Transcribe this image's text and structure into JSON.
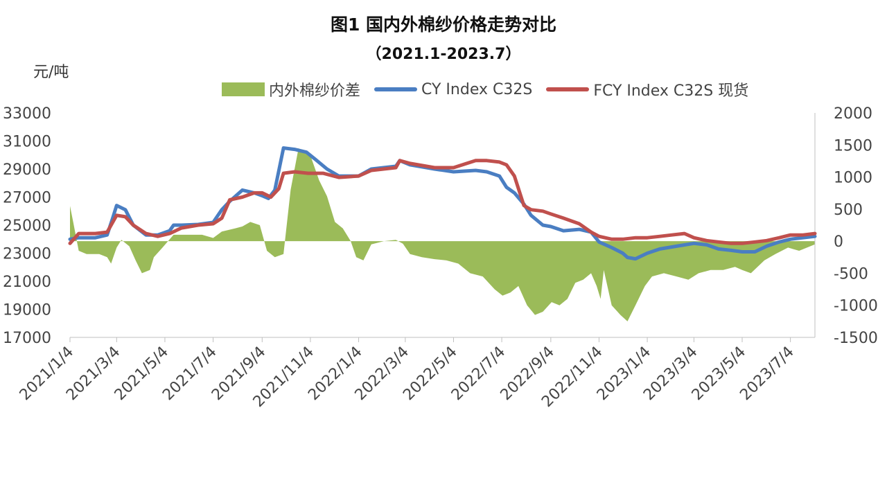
{
  "chart_data": {
    "type": "line",
    "title": "图1   国内外棉纱价格走势对比",
    "subtitle": "（2021.1-2023.7）",
    "ylabel": "元/吨",
    "ylim": [
      17000,
      33000
    ],
    "y2lim": [
      -1500,
      2000
    ],
    "y_ticks": [
      "33000",
      "31000",
      "29000",
      "27000",
      "25000",
      "23000",
      "21000",
      "19000",
      "17000"
    ],
    "y2_ticks": [
      "2000",
      "1500",
      "1000",
      "500",
      "0",
      "-500",
      "-1000",
      "-1500"
    ],
    "x_tick_labels": [
      "2021/1/4",
      "2021/3/4",
      "2021/5/4",
      "2021/7/4",
      "2021/9/4",
      "2021/11/4",
      "2022/1/4",
      "2022/3/4",
      "2022/5/4",
      "2022/7/4",
      "2022/9/4",
      "2022/11/4",
      "2023/1/4",
      "2023/3/4",
      "2023/5/4",
      "2023/7/4"
    ],
    "x_start": "2021/1/4",
    "x_end": "2023/8/4",
    "series": [
      {
        "name": "CY Index C32S",
        "axis": "left",
        "color": "#4A7EC2",
        "x": [
          "2021/1/4",
          "2021/1/15",
          "2021/2/5",
          "2021/2/20",
          "2021/2/27",
          "2021/3/4",
          "2021/3/15",
          "2021/3/25",
          "2021/4/10",
          "2021/4/25",
          "2021/5/10",
          "2021/5/15",
          "2021/5/25",
          "2021/6/15",
          "2021/7/4",
          "2021/7/15",
          "2021/7/25",
          "2021/8/10",
          "2021/8/25",
          "2021/9/4",
          "2021/9/12",
          "2021/9/20",
          "2021/10/1",
          "2021/10/15",
          "2021/10/30",
          "2021/11/10",
          "2021/11/25",
          "2021/12/10",
          "2022/1/4",
          "2022/1/20",
          "2022/2/20",
          "2022/2/25",
          "2022/3/10",
          "2022/4/10",
          "2022/5/4",
          "2022/6/1",
          "2022/6/15",
          "2022/7/1",
          "2022/7/10",
          "2022/7/20",
          "2022/8/1",
          "2022/8/10",
          "2022/8/25",
          "2022/9/4",
          "2022/9/20",
          "2022/10/10",
          "2022/10/25",
          "2022/11/4",
          "2022/11/20",
          "2022/12/4",
          "2022/12/10",
          "2022/12/20",
          "2023/1/4",
          "2023/1/20",
          "2023/2/10",
          "2023/3/4",
          "2023/3/20",
          "2023/4/4",
          "2023/4/20",
          "2023/5/4",
          "2023/5/20",
          "2023/6/4",
          "2023/6/20",
          "2023/7/4",
          "2023/7/20",
          "2023/8/4"
        ],
        "values": [
          24000,
          24100,
          24100,
          24300,
          25500,
          26400,
          26100,
          25000,
          24300,
          24300,
          24600,
          25000,
          25000,
          25050,
          25200,
          26100,
          26700,
          27500,
          27300,
          27100,
          26900,
          27500,
          30500,
          30400,
          30200,
          29700,
          29000,
          28500,
          28500,
          29000,
          29200,
          29600,
          29300,
          29000,
          28800,
          28900,
          28800,
          28500,
          27700,
          27300,
          26500,
          25700,
          25000,
          24900,
          24600,
          24700,
          24500,
          23800,
          23400,
          23000,
          22700,
          22600,
          23000,
          23300,
          23500,
          23700,
          23600,
          23300,
          23200,
          23100,
          23100,
          23500,
          23800,
          24000,
          24100,
          24200
        ]
      },
      {
        "name": "FCY Index C32S 现货",
        "axis": "left",
        "color": "#C0504D",
        "x": [
          "2021/1/4",
          "2021/1/15",
          "2021/2/5",
          "2021/2/20",
          "2021/3/4",
          "2021/3/15",
          "2021/3/25",
          "2021/4/10",
          "2021/4/25",
          "2021/5/10",
          "2021/5/25",
          "2021/6/15",
          "2021/7/4",
          "2021/7/15",
          "2021/7/25",
          "2021/8/10",
          "2021/8/25",
          "2021/9/4",
          "2021/9/15",
          "2021/9/25",
          "2021/10/1",
          "2021/10/15",
          "2021/11/1",
          "2021/11/20",
          "2021/12/10",
          "2022/1/4",
          "2022/1/20",
          "2022/2/20",
          "2022/2/25",
          "2022/3/10",
          "2022/4/10",
          "2022/5/4",
          "2022/6/1",
          "2022/6/15",
          "2022/7/1",
          "2022/7/10",
          "2022/7/20",
          "2022/8/1",
          "2022/8/10",
          "2022/8/25",
          "2022/9/4",
          "2022/9/20",
          "2022/10/10",
          "2022/10/25",
          "2022/11/4",
          "2022/11/20",
          "2022/12/4",
          "2022/12/20",
          "2023/1/4",
          "2023/1/20",
          "2023/2/4",
          "2023/2/20",
          "2023/3/4",
          "2023/3/20",
          "2023/4/4",
          "2023/4/20",
          "2023/5/4",
          "2023/5/20",
          "2023/6/4",
          "2023/6/20",
          "2023/7/4",
          "2023/7/20",
          "2023/8/4"
        ],
        "values": [
          23700,
          24400,
          24400,
          24500,
          25700,
          25600,
          25000,
          24400,
          24200,
          24400,
          24800,
          25000,
          25100,
          25500,
          26800,
          27000,
          27300,
          27300,
          27000,
          27600,
          28700,
          28800,
          28700,
          28700,
          28400,
          28500,
          28900,
          29100,
          29600,
          29400,
          29100,
          29100,
          29600,
          29600,
          29500,
          29300,
          28500,
          26400,
          26100,
          26000,
          25800,
          25500,
          25100,
          24500,
          24200,
          24000,
          24000,
          24100,
          24100,
          24200,
          24300,
          24400,
          24100,
          23900,
          23800,
          23700,
          23700,
          23800,
          23900,
          24100,
          24300,
          24300,
          24400
        ]
      },
      {
        "name": "内外棉纱价差",
        "axis": "right",
        "type": "area",
        "color": "#9BBB59",
        "x": [
          "2021/1/4",
          "2021/1/8",
          "2021/1/15",
          "2021/1/25",
          "2021/2/10",
          "2021/2/20",
          "2021/2/25",
          "2021/3/4",
          "2021/3/10",
          "2021/3/20",
          "2021/3/28",
          "2021/4/5",
          "2021/4/15",
          "2021/4/20",
          "2021/5/1",
          "2021/5/15",
          "2021/6/1",
          "2021/6/20",
          "2021/7/4",
          "2021/7/15",
          "2021/8/1",
          "2021/8/10",
          "2021/8/20",
          "2021/9/1",
          "2021/9/10",
          "2021/9/20",
          "2021/10/1",
          "2021/10/10",
          "2021/10/20",
          "2021/11/5",
          "2021/11/15",
          "2021/11/25",
          "2021/12/5",
          "2021/12/15",
          "2021/12/25",
          "2022/1/1",
          "2022/1/10",
          "2022/1/20",
          "2022/2/5",
          "2022/2/20",
          "2022/3/1",
          "2022/3/10",
          "2022/3/25",
          "2022/4/10",
          "2022/4/25",
          "2022/5/10",
          "2022/5/25",
          "2022/6/10",
          "2022/6/25",
          "2022/7/5",
          "2022/7/15",
          "2022/7/25",
          "2022/8/5",
          "2022/8/15",
          "2022/8/25",
          "2022/9/5",
          "2022/9/15",
          "2022/9/25",
          "2022/10/5",
          "2022/10/15",
          "2022/10/25",
          "2022/11/1",
          "2022/11/6",
          "2022/11/10",
          "2022/11/20",
          "2022/12/1",
          "2022/12/10",
          "2022/12/20",
          "2023/1/1",
          "2023/1/10",
          "2023/1/25",
          "2023/2/10",
          "2023/2/25",
          "2023/3/10",
          "2023/3/25",
          "2023/4/10",
          "2023/4/25",
          "2023/5/4",
          "2023/5/15",
          "2023/6/1",
          "2023/6/15",
          "2023/7/1",
          "2023/7/15",
          "2023/8/4"
        ],
        "values": [
          550,
          300,
          -150,
          -200,
          -200,
          -250,
          -350,
          -100,
          20,
          -80,
          -300,
          -500,
          -450,
          -250,
          -100,
          100,
          100,
          100,
          50,
          150,
          200,
          230,
          300,
          250,
          -150,
          -250,
          -200,
          800,
          1450,
          1300,
          950,
          700,
          300,
          200,
          0,
          -250,
          -300,
          -50,
          0,
          20,
          -40,
          -200,
          -250,
          -280,
          -300,
          -350,
          -500,
          -550,
          -750,
          -850,
          -800,
          -700,
          -1000,
          -1150,
          -1100,
          -950,
          -1000,
          -900,
          -650,
          -600,
          -500,
          -700,
          -900,
          -450,
          -1000,
          -1150,
          -1250,
          -1000,
          -700,
          -550,
          -500,
          -550,
          -600,
          -500,
          -450,
          -450,
          -400,
          -450,
          -500,
          -300,
          -200,
          -100,
          -150,
          -50
        ]
      }
    ],
    "legend_position": "top",
    "grid": false
  }
}
